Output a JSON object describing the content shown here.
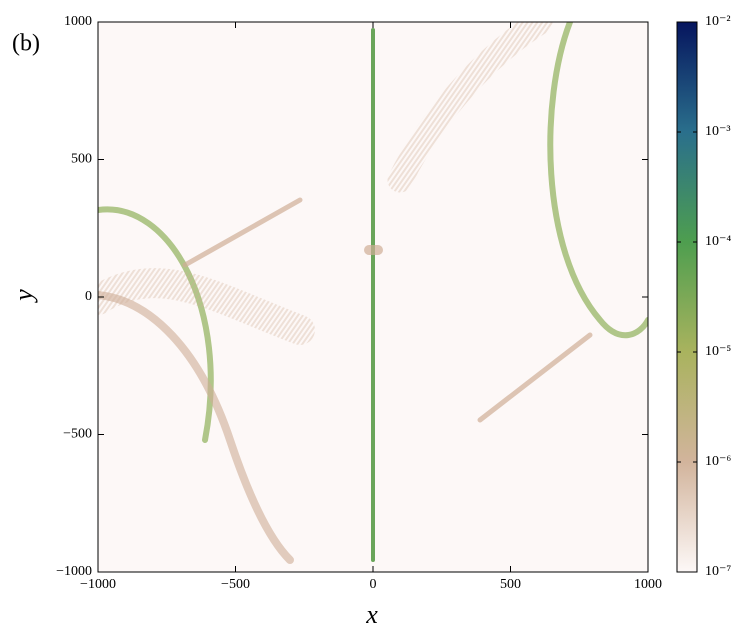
{
  "chart_data": {
    "type": "heatmap",
    "panel_label": "(b)",
    "xlabel": "x",
    "ylabel": "y",
    "xlim": [
      -1000,
      1000
    ],
    "ylim": [
      -1000,
      1000
    ],
    "xticks": [
      {
        "value": -1000,
        "label": "−1000"
      },
      {
        "value": -500,
        "label": "−500"
      },
      0,
      500,
      1000
    ],
    "yticks": [
      {
        "value": -1000,
        "label": "−1000"
      },
      {
        "value": -500,
        "label": "−500"
      },
      0,
      500,
      1000
    ],
    "colorbar": {
      "log_scale": true,
      "lim": [
        1e-07,
        0.01
      ],
      "ticks": [
        {
          "value": 1e-07,
          "label": "10⁻⁷"
        },
        {
          "value": 1e-06,
          "label": "10⁻⁶"
        },
        {
          "value": 1e-05,
          "label": "10⁻⁵"
        },
        {
          "value": 0.0001,
          "label": "10⁻⁴"
        },
        {
          "value": 0.001,
          "label": "10⁻³"
        },
        {
          "value": 0.01,
          "label": "10⁻²"
        }
      ],
      "colors": [
        "#fdf8f7",
        "#d2b49c",
        "#a9b35e",
        "#4e9e4f",
        "#2a6f8c",
        "#06155e"
      ]
    }
  }
}
